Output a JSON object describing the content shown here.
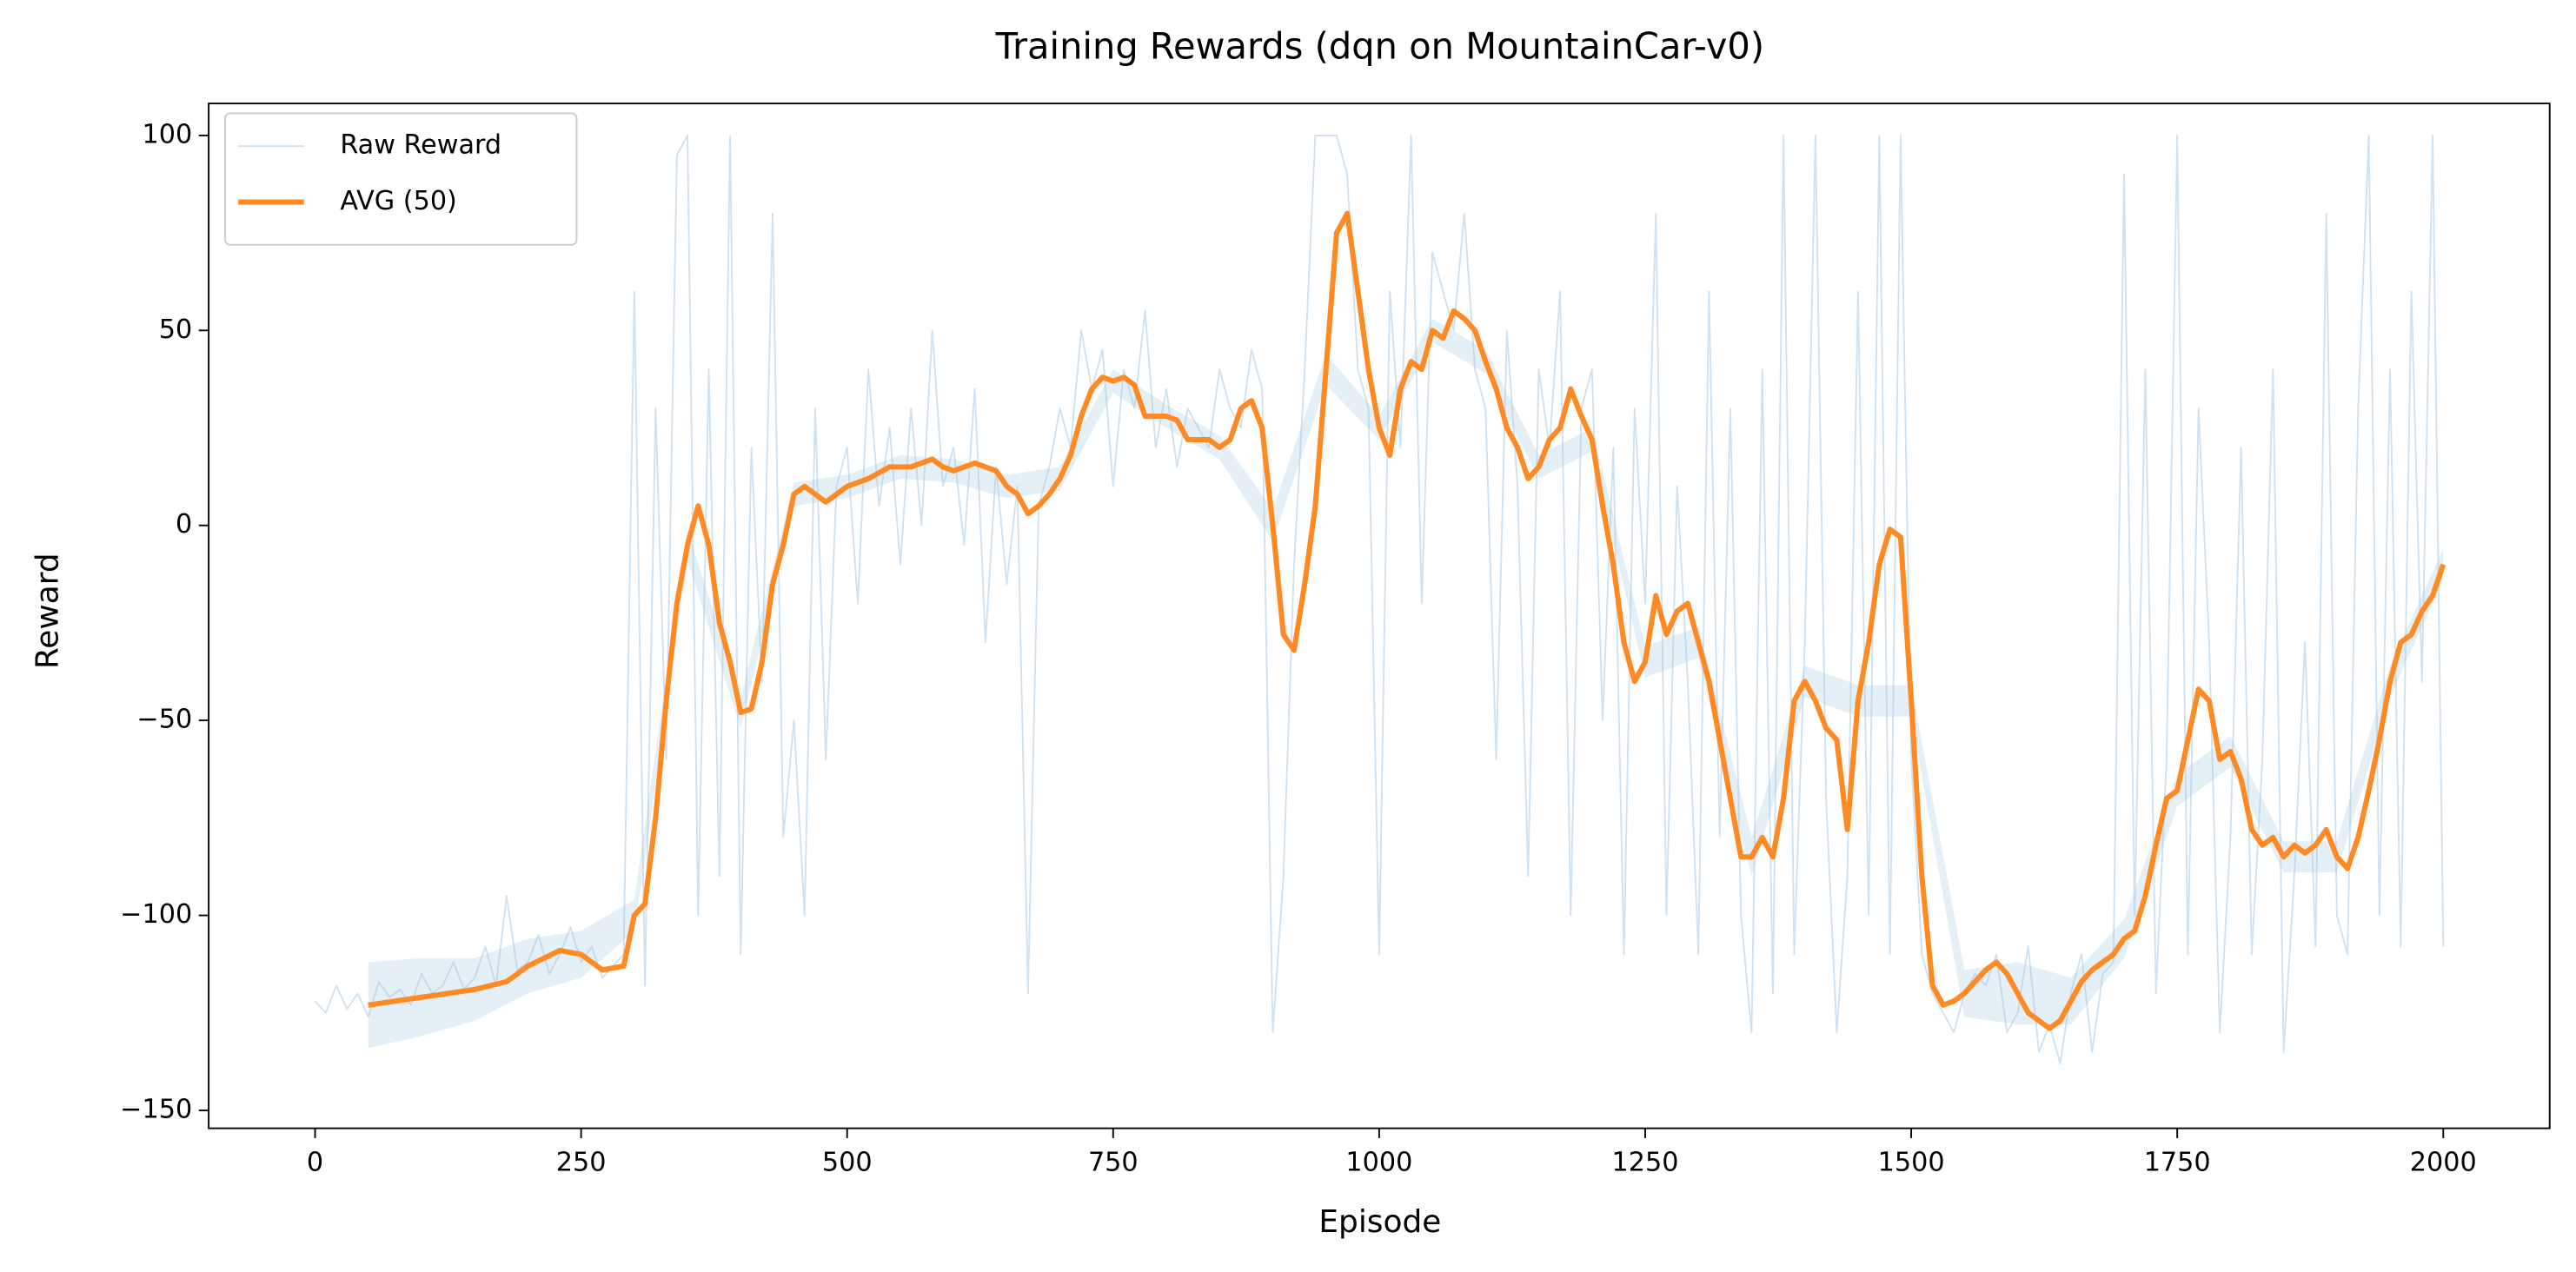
{
  "chart_data": {
    "type": "line",
    "title": "Training Rewards (dqn on MountainCar-v0)",
    "x_label": "Episode",
    "y_label": "Reward",
    "xlim": [
      -100,
      2100
    ],
    "ylim": [
      -154.6,
      108.2
    ],
    "xticks": [
      0,
      250,
      500,
      750,
      1000,
      1250,
      1500,
      1750,
      2000
    ],
    "yticks": [
      {
        "value": -150,
        "label": "−150"
      },
      100,
      50,
      0,
      {
        "value": -50,
        "label": "−50"
      },
      {
        "value": -100,
        "label": "−100"
      }
    ],
    "legend": "upper left",
    "series": [
      {
        "name": "Raw Reward",
        "color": "#a9c9e2",
        "width": 1,
        "x": [
          0,
          10,
          20,
          30,
          40,
          50,
          60,
          70,
          80,
          90,
          100,
          110,
          120,
          130,
          140,
          150,
          160,
          170,
          180,
          190,
          200,
          210,
          220,
          230,
          240,
          250,
          260,
          270,
          280,
          290,
          300,
          310,
          320,
          330,
          340,
          350,
          360,
          370,
          380,
          390,
          400,
          410,
          420,
          430,
          440,
          450,
          460,
          470,
          480,
          490,
          500,
          510,
          520,
          530,
          540,
          550,
          560,
          570,
          580,
          590,
          600,
          610,
          620,
          630,
          640,
          650,
          660,
          670,
          680,
          690,
          700,
          710,
          720,
          730,
          740,
          750,
          760,
          770,
          780,
          790,
          800,
          810,
          820,
          830,
          840,
          850,
          860,
          870,
          880,
          890,
          900,
          910,
          920,
          930,
          940,
          950,
          960,
          970,
          980,
          990,
          1000,
          1010,
          1020,
          1030,
          1040,
          1050,
          1060,
          1070,
          1080,
          1090,
          1100,
          1110,
          1120,
          1130,
          1140,
          1150,
          1160,
          1170,
          1180,
          1190,
          1200,
          1210,
          1220,
          1230,
          1240,
          1250,
          1260,
          1270,
          1280,
          1290,
          1300,
          1310,
          1320,
          1330,
          1340,
          1350,
          1360,
          1370,
          1380,
          1390,
          1400,
          1410,
          1420,
          1430,
          1440,
          1450,
          1460,
          1470,
          1480,
          1490,
          1500,
          1510,
          1520,
          1530,
          1540,
          1550,
          1560,
          1570,
          1580,
          1590,
          1600,
          1610,
          1620,
          1630,
          1640,
          1650,
          1660,
          1670,
          1680,
          1690,
          1700,
          1710,
          1720,
          1730,
          1740,
          1750,
          1760,
          1770,
          1780,
          1790,
          1800,
          1810,
          1820,
          1830,
          1840,
          1850,
          1860,
          1870,
          1880,
          1890,
          1900,
          1910,
          1920,
          1930,
          1940,
          1950,
          1960,
          1970,
          1980,
          1990,
          2000
        ],
        "values": [
          -122,
          -125,
          -118,
          -124,
          -120,
          -126,
          -117,
          -121,
          -119,
          -123,
          -115,
          -120,
          -118,
          -112,
          -119,
          -116,
          -108,
          -118,
          -95,
          -114,
          -112,
          -105,
          -115,
          -110,
          -103,
          -112,
          -108,
          -116,
          -113,
          -110,
          60,
          -118,
          30,
          -60,
          95,
          100,
          -100,
          40,
          -90,
          100,
          -110,
          20,
          -40,
          80,
          -80,
          -50,
          -100,
          30,
          -60,
          10,
          20,
          -20,
          40,
          5,
          25,
          -10,
          30,
          0,
          50,
          10,
          20,
          -5,
          35,
          -30,
          15,
          -15,
          10,
          -120,
          5,
          15,
          30,
          20,
          50,
          35,
          45,
          10,
          40,
          30,
          55,
          20,
          35,
          15,
          30,
          25,
          20,
          40,
          30,
          25,
          45,
          35,
          -130,
          -90,
          -10,
          40,
          100,
          100,
          100,
          90,
          40,
          30,
          -110,
          60,
          20,
          100,
          -20,
          70,
          60,
          50,
          80,
          40,
          30,
          -60,
          50,
          10,
          -90,
          40,
          20,
          60,
          -100,
          30,
          40,
          -50,
          20,
          -110,
          30,
          -20,
          80,
          -100,
          10,
          -40,
          -110,
          60,
          -80,
          30,
          -100,
          -130,
          40,
          -120,
          100,
          -110,
          -30,
          100,
          -70,
          -130,
          -90,
          60,
          -100,
          100,
          -110,
          100,
          -60,
          -110,
          -120,
          -125,
          -130,
          -120,
          -115,
          -118,
          -110,
          -130,
          -125,
          -108,
          -135,
          -128,
          -138,
          -120,
          -110,
          -135,
          -115,
          -112,
          90,
          -100,
          40,
          -120,
          -60,
          100,
          -110,
          30,
          -30,
          -130,
          -80,
          20,
          -110,
          -60,
          40,
          -135,
          -90,
          -30,
          -108,
          80,
          -100,
          -110,
          30,
          100,
          -100,
          40,
          -108,
          60,
          -40,
          100,
          -108
        ]
      },
      {
        "name": "AVG (50)",
        "color": "#ff8a24",
        "width": 3.2,
        "x": [
          50,
          100,
          150,
          180,
          200,
          230,
          250,
          270,
          290,
          300,
          310,
          320,
          330,
          340,
          350,
          360,
          370,
          380,
          390,
          400,
          410,
          420,
          430,
          440,
          450,
          460,
          470,
          480,
          490,
          500,
          520,
          540,
          560,
          580,
          590,
          600,
          620,
          640,
          650,
          660,
          670,
          680,
          690,
          700,
          710,
          720,
          730,
          740,
          750,
          760,
          770,
          780,
          790,
          800,
          810,
          820,
          830,
          840,
          850,
          860,
          870,
          880,
          890,
          900,
          910,
          920,
          930,
          940,
          950,
          960,
          970,
          980,
          990,
          1000,
          1010,
          1020,
          1030,
          1040,
          1050,
          1060,
          1070,
          1080,
          1090,
          1100,
          1110,
          1120,
          1130,
          1140,
          1150,
          1160,
          1170,
          1180,
          1190,
          1200,
          1210,
          1220,
          1230,
          1240,
          1250,
          1260,
          1270,
          1280,
          1290,
          1300,
          1310,
          1320,
          1330,
          1340,
          1350,
          1360,
          1370,
          1380,
          1390,
          1400,
          1410,
          1420,
          1430,
          1440,
          1450,
          1460,
          1470,
          1480,
          1490,
          1500,
          1510,
          1520,
          1530,
          1540,
          1550,
          1560,
          1570,
          1580,
          1590,
          1600,
          1610,
          1620,
          1630,
          1640,
          1650,
          1660,
          1670,
          1680,
          1690,
          1700,
          1710,
          1720,
          1730,
          1740,
          1750,
          1760,
          1770,
          1780,
          1790,
          1800,
          1810,
          1820,
          1830,
          1840,
          1850,
          1860,
          1870,
          1880,
          1890,
          1900,
          1910,
          1920,
          1930,
          1940,
          1950,
          1960,
          1970,
          1980,
          1990,
          2000
        ],
        "values": [
          -123,
          -121,
          -119,
          -117,
          -113,
          -109,
          -110,
          -114,
          -113,
          -100,
          -97,
          -75,
          -45,
          -20,
          -5,
          5,
          -5,
          -25,
          -35,
          -48,
          -47,
          -35,
          -15,
          -5,
          8,
          10,
          8,
          6,
          8,
          10,
          12,
          15,
          15,
          17,
          15,
          14,
          16,
          14,
          10,
          8,
          3,
          5,
          8,
          12,
          18,
          28,
          35,
          38,
          37,
          38,
          36,
          28,
          28,
          28,
          27,
          22,
          22,
          22,
          20,
          22,
          30,
          32,
          25,
          0,
          -28,
          -32,
          -15,
          5,
          40,
          75,
          80,
          60,
          40,
          25,
          18,
          35,
          42,
          40,
          50,
          48,
          55,
          53,
          50,
          42,
          35,
          25,
          20,
          12,
          15,
          22,
          25,
          35,
          28,
          22,
          5,
          -10,
          -30,
          -40,
          -35,
          -18,
          -28,
          -22,
          -20,
          -30,
          -40,
          -55,
          -70,
          -85,
          -85,
          -80,
          -85,
          -70,
          -45,
          -40,
          -45,
          -52,
          -55,
          -78,
          -45,
          -30,
          -10,
          -1,
          -3,
          -45,
          -90,
          -118,
          -123,
          -122,
          -120,
          -117,
          -114,
          -112,
          -115,
          -120,
          -125,
          -127,
          -129,
          -127,
          -122,
          -117,
          -114,
          -112,
          -110,
          -106,
          -104,
          -95,
          -82,
          -70,
          -68,
          -55,
          -42,
          -45,
          -60,
          -58,
          -65,
          -78,
          -82,
          -80,
          -85,
          -82,
          -84,
          -82,
          -78,
          -85,
          -88,
          -80,
          -68,
          -55,
          -40,
          -30,
          -28,
          -22,
          -18,
          -10
        ]
      }
    ],
    "band": {
      "color": "#a9c9e2",
      "x": [
        50,
        100,
        150,
        200,
        250,
        300,
        350,
        400,
        450,
        500,
        550,
        600,
        650,
        700,
        750,
        800,
        850,
        900,
        950,
        1000,
        1050,
        1100,
        1150,
        1200,
        1250,
        1300,
        1350,
        1400,
        1450,
        1500,
        1550,
        1600,
        1650,
        1700,
        1750,
        1800,
        1850,
        1900,
        1950,
        2000
      ],
      "lower": [
        -134,
        -131,
        -127,
        -120,
        -116,
        -104,
        -9,
        -52,
        5,
        7,
        12,
        11,
        7,
        9,
        34,
        25,
        17,
        -4,
        36,
        22,
        47,
        39,
        12,
        19,
        -39,
        -34,
        -90,
        -44,
        -49,
        -49,
        -126,
        -128,
        -128,
        -111,
        -72,
        -62,
        -89,
        -89,
        -44,
        -14
      ],
      "upper": [
        -112,
        -111,
        -111,
        -106,
        -104,
        -96,
        -1,
        -44,
        11,
        13,
        18,
        17,
        13,
        15,
        40,
        31,
        23,
        4,
        44,
        28,
        53,
        45,
        18,
        25,
        -31,
        -26,
        -80,
        -36,
        -41,
        -41,
        -114,
        -112,
        -116,
        -101,
        -64,
        -54,
        -81,
        -81,
        -36,
        -6
      ]
    }
  }
}
